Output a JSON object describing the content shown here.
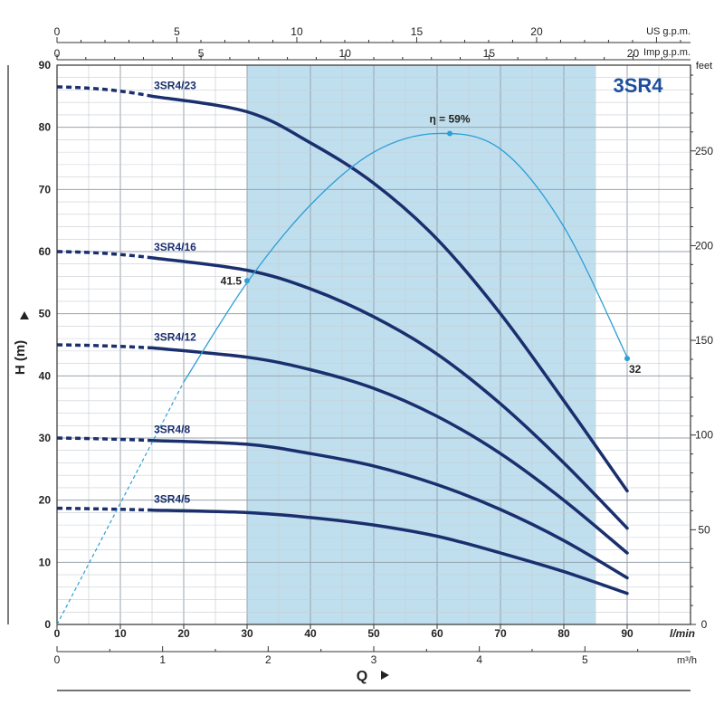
{
  "chart_data": {
    "type": "line",
    "badge": "3SR4",
    "ylabel": "H (m)",
    "xlabel": "Q",
    "x_unit": "l/min",
    "x_unit_m3h": "m³/h",
    "x_unit_usgpm": "US g.p.m.",
    "x_unit_impgpm": "Imp g.p.m.",
    "y_unit_right": "feet",
    "xlim": [
      0,
      100
    ],
    "ylim": [
      0,
      90
    ],
    "grid": true,
    "x_ticks": [
      0,
      10,
      20,
      30,
      40,
      50,
      60,
      70,
      80,
      90
    ],
    "y_ticks": [
      0,
      10,
      20,
      30,
      40,
      50,
      60,
      70,
      80,
      90
    ],
    "m3h_ticks": [
      0,
      1,
      2,
      3,
      4,
      5
    ],
    "usgpm_ticks": [
      0,
      5,
      10,
      15,
      20
    ],
    "impgpm_ticks": [
      0,
      5,
      10,
      15,
      20
    ],
    "feet_ticks": [
      0,
      50,
      100,
      150,
      200,
      250
    ],
    "operating_range": [
      30,
      85
    ],
    "series": [
      {
        "name": "3SR4/23",
        "shutoff": 86.5,
        "x": [
          15,
          30,
          40,
          50,
          60,
          70,
          80,
          90
        ],
        "y": [
          85,
          82.5,
          77.5,
          71,
          62,
          50,
          36,
          21.5
        ]
      },
      {
        "name": "3SR4/16",
        "shutoff": 60,
        "x": [
          15,
          30,
          40,
          50,
          60,
          70,
          80,
          90
        ],
        "y": [
          59,
          57,
          54,
          49.5,
          43.5,
          35.5,
          26,
          15.5
        ]
      },
      {
        "name": "3SR4/12",
        "shutoff": 45,
        "x": [
          15,
          30,
          40,
          50,
          60,
          70,
          80,
          90
        ],
        "y": [
          44.5,
          43,
          41,
          38,
          33.5,
          27.5,
          20,
          11.5
        ]
      },
      {
        "name": "3SR4/8",
        "shutoff": 30,
        "x": [
          15,
          30,
          40,
          50,
          60,
          70,
          80,
          90
        ],
        "y": [
          29.6,
          29,
          27.5,
          25.5,
          22.5,
          18.5,
          13.5,
          7.5
        ]
      },
      {
        "name": "3SR4/5",
        "shutoff": 18.7,
        "x": [
          15,
          30,
          40,
          50,
          60,
          70,
          80,
          90
        ],
        "y": [
          18.4,
          18,
          17.2,
          16,
          14.2,
          11.5,
          8.5,
          5
        ]
      }
    ],
    "efficiency": {
      "label": "η = 59%",
      "x": [
        0,
        10,
        20,
        30,
        40,
        50,
        60,
        70,
        80,
        90
      ],
      "y": [
        0,
        19.5,
        39,
        55,
        67.5,
        76,
        79,
        76.5,
        64,
        43
      ],
      "dashed_until_x": 20,
      "points": [
        {
          "x": 30,
          "y": 55.3,
          "label": "41.5"
        },
        {
          "x": 62,
          "y": 79,
          "label": ""
        },
        {
          "x": 90,
          "y": 42.8,
          "label": "32"
        }
      ]
    }
  }
}
